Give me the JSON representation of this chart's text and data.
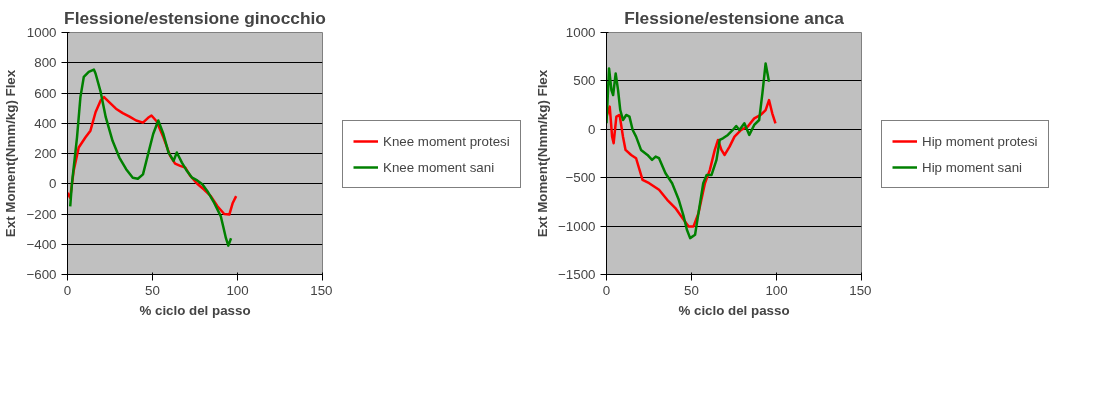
{
  "chart_data": [
    {
      "type": "line",
      "title": "Flessione/estensione ginocchio",
      "xlabel": "% ciclo del passo",
      "ylabel": "Ext Moment(Nmm/kg) Flex",
      "xlim": [
        0,
        150
      ],
      "xticks": [
        0,
        50,
        100,
        150
      ],
      "ylim": [
        -600,
        1000
      ],
      "yticks": [
        -600,
        -400,
        -200,
        0,
        200,
        400,
        600,
        800,
        1000
      ],
      "grid": "y",
      "legend": "right",
      "marker": "none",
      "line_style": "solid",
      "series": [
        {
          "name": "Knee moment protesi",
          "color": "#ff0000",
          "x": [
            0,
            1.6,
            3.6,
            6.6,
            10.6,
            13.5,
            16.5,
            19.5,
            21.5,
            24.5,
            28.5,
            32.5,
            36.5,
            40.4,
            44.4,
            47.4,
            49.4,
            52.4,
            56.4,
            60.4,
            63.3,
            66.3,
            69.3,
            72.3,
            76.3,
            80.3,
            84.3,
            88.2,
            92.2,
            95.2,
            97.2,
            99.2
          ],
          "values": [
            -60,
            -93,
            84,
            240,
            307,
            351,
            473,
            551,
            573,
            540,
            496,
            467,
            444,
            418,
            404,
            436,
            451,
            413,
            307,
            184,
            133,
            118,
            107,
            51,
            0,
            -38,
            -82,
            -149,
            -200,
            -204,
            -127,
            -82
          ]
        },
        {
          "name": "Knee moment sani",
          "color": "#008000",
          "x": [
            1.6,
            2.6,
            5.6,
            7.6,
            9.6,
            12.5,
            15.5,
            16.5,
            19.5,
            22.5,
            26.5,
            30.5,
            34.5,
            38.4,
            41.4,
            44.4,
            47.4,
            50.4,
            53.4,
            56.4,
            59.4,
            62.4,
            64.3,
            67.3,
            70.3,
            73.3,
            76.3,
            79.3,
            82.3,
            86.3,
            90.2,
            91.8,
            93.2,
            94.6,
            96.2
          ],
          "values": [
            -149,
            0,
            307,
            573,
            707,
            740,
            755,
            729,
            607,
            440,
            284,
            173,
            96,
            40,
            33,
            62,
            196,
            329,
            418,
            329,
            207,
            151,
            207,
            140,
            84,
            40,
            22,
            -4,
            -49,
            -127,
            -216,
            -293,
            -360,
            -409,
            -360
          ]
        }
      ]
    },
    {
      "type": "line",
      "title": "Flessione/estensione anca",
      "xlabel": "% ciclo del passo",
      "ylabel": "Ext Moment(Nmm/kg) Flex",
      "xlim": [
        0,
        150
      ],
      "xticks": [
        0,
        50,
        100,
        150
      ],
      "ylim": [
        -1500,
        1000
      ],
      "yticks": [
        -1500,
        -1000,
        -500,
        0,
        500,
        1000
      ],
      "grid": "y",
      "legend": "right",
      "marker": "none",
      "line_style": "solid",
      "series": [
        {
          "name": "Hip moment protesi",
          "color": "#ff0000",
          "x": [
            0,
            1.9,
            3.3,
            4.2,
            5.8,
            7.7,
            9.7,
            11.2,
            14.5,
            17.4,
            21.2,
            25.1,
            30.9,
            35.7,
            40.5,
            45.4,
            48.3,
            51.2,
            54.1,
            57.9,
            60.8,
            63.7,
            65.6,
            67.6,
            69.5,
            72.4,
            75.3,
            79.2,
            83.0,
            86.9,
            90.7,
            93.6,
            95.6,
            97.5,
            99.4
          ],
          "values": [
            131,
            234,
            -76,
            -144,
            131,
            148,
            -76,
            -213,
            -265,
            -299,
            -522,
            -557,
            -625,
            -728,
            -814,
            -935,
            -1003,
            -1003,
            -866,
            -557,
            -419,
            -213,
            -110,
            -213,
            -265,
            -179,
            -76,
            -7,
            27,
            113,
            148,
            199,
            302,
            165,
            62
          ]
        },
        {
          "name": "Hip moment sani",
          "color": "#008000",
          "x": [
            0,
            1.5,
            2.9,
            3.9,
            5.4,
            6.8,
            8.1,
            9.7,
            11.6,
            13.5,
            15.4,
            17.4,
            20.3,
            24.1,
            26.8,
            28.9,
            30.9,
            34.7,
            38.6,
            42.5,
            45.4,
            47.3,
            49.2,
            52.1,
            54.1,
            56.9,
            58.9,
            61.8,
            64.7,
            66.6,
            68.5,
            71.4,
            74.3,
            76.3,
            78.2,
            81.1,
            84.0,
            86.9,
            89.8,
            91.7,
            93.6,
            95.6
          ],
          "values": [
            62,
            629,
            405,
            354,
            577,
            405,
            199,
            96,
            148,
            131,
            -7,
            -76,
            -213,
            -265,
            -316,
            -282,
            -299,
            -454,
            -557,
            -728,
            -900,
            -1038,
            -1124,
            -1089,
            -866,
            -557,
            -471,
            -471,
            -316,
            -110,
            -93,
            -58,
            -7,
            34,
            -7,
            62,
            -58,
            45,
            96,
            371,
            680,
            491
          ]
        }
      ]
    }
  ]
}
